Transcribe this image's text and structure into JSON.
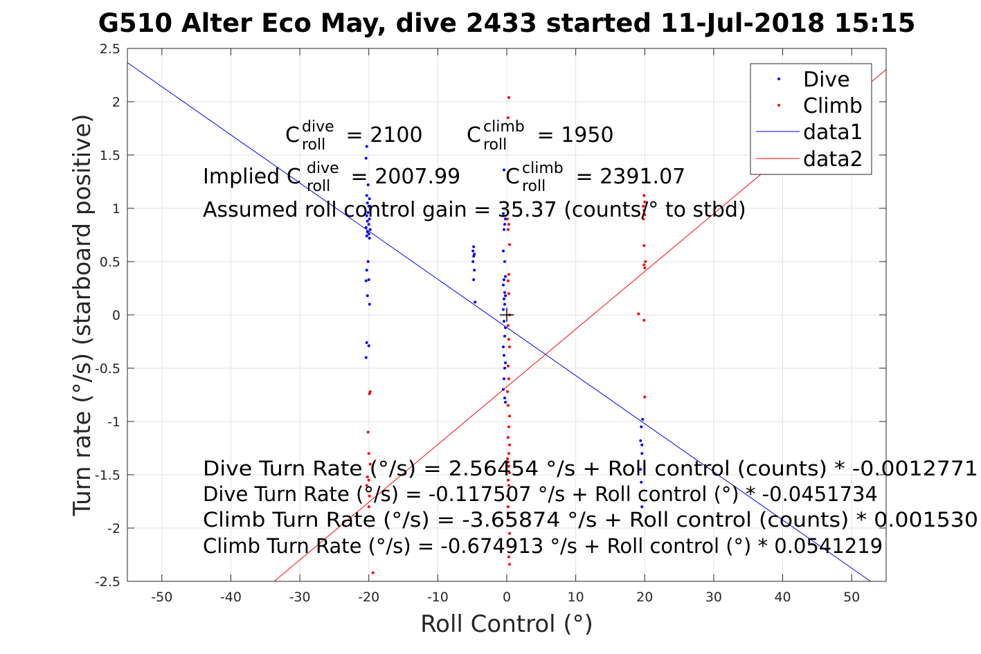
{
  "chart_data": {
    "type": "scatter",
    "title": "G510 Alter Eco May, dive 2433 started 11-Jul-2018 15:15",
    "xlabel": "Roll Control (°)",
    "ylabel": "Turn rate (°/s) (starboard positive)",
    "xlim": [
      -55,
      55
    ],
    "ylim": [
      -2.5,
      2.5
    ],
    "xticks": [
      -50,
      -40,
      -30,
      -20,
      -10,
      0,
      10,
      20,
      30,
      40,
      50
    ],
    "yticks": [
      -2.5,
      -2,
      -1.5,
      -1,
      -0.5,
      0,
      0.5,
      1,
      1.5,
      2,
      2.5
    ],
    "grid": true,
    "legend_position": "top-right",
    "colors": {
      "dive": "#0000ff",
      "climb": "#ff0000",
      "data1": "#0000ff",
      "data2": "#ff0000"
    },
    "series": [
      {
        "name": "Dive",
        "kind": "points",
        "color": "#0000ff",
        "points": [
          [
            -20.3,
            1.58
          ],
          [
            -20.4,
            1.47
          ],
          [
            -20.1,
            1.22
          ],
          [
            -20.3,
            1.12
          ],
          [
            -19.9,
            1.09
          ],
          [
            -20.2,
            1.05
          ],
          [
            -20.0,
            1.02
          ],
          [
            -19.8,
            0.99
          ],
          [
            -20.1,
            0.96
          ],
          [
            -20.3,
            0.93
          ],
          [
            -19.9,
            0.9
          ],
          [
            -20.2,
            0.88
          ],
          [
            -20.0,
            0.85
          ],
          [
            -20.4,
            0.82
          ],
          [
            -19.8,
            0.8
          ],
          [
            -20.2,
            0.78
          ],
          [
            -20.0,
            0.76
          ],
          [
            -20.3,
            0.74
          ],
          [
            -19.9,
            0.72
          ],
          [
            -20.1,
            0.5
          ],
          [
            -20.3,
            0.42
          ],
          [
            -20.0,
            0.33
          ],
          [
            -20.4,
            0.32
          ],
          [
            -20.2,
            0.18
          ],
          [
            -19.9,
            0.1
          ],
          [
            -20.3,
            -0.26
          ],
          [
            -20.0,
            -0.29
          ],
          [
            -20.4,
            -0.4
          ],
          [
            -4.8,
            0.64
          ],
          [
            -4.9,
            0.6
          ],
          [
            -4.7,
            0.57
          ],
          [
            -4.8,
            0.55
          ],
          [
            -4.9,
            0.5
          ],
          [
            -4.7,
            0.42
          ],
          [
            -4.8,
            0.33
          ],
          [
            -4.6,
            0.12
          ],
          [
            -0.4,
            1.36
          ],
          [
            -0.5,
            0.95
          ],
          [
            -0.2,
            0.9
          ],
          [
            -0.3,
            0.85
          ],
          [
            -0.4,
            0.8
          ],
          [
            -0.5,
            0.6
          ],
          [
            -0.3,
            0.5
          ],
          [
            -0.2,
            0.36
          ],
          [
            -0.4,
            0.33
          ],
          [
            -0.5,
            0.28
          ],
          [
            -0.3,
            0.21
          ],
          [
            -0.2,
            0.18
          ],
          [
            -0.4,
            0.15
          ],
          [
            -0.3,
            0.1
          ],
          [
            -0.5,
            0.05
          ],
          [
            -0.4,
            -0.06
          ],
          [
            -0.2,
            -0.12
          ],
          [
            -0.3,
            -0.2
          ],
          [
            -0.5,
            -0.3
          ],
          [
            -0.4,
            -0.38
          ],
          [
            -0.2,
            -0.45
          ],
          [
            -0.3,
            -0.5
          ],
          [
            -0.4,
            -0.6
          ],
          [
            -0.5,
            -0.7
          ],
          [
            -0.3,
            -0.78
          ],
          [
            -0.2,
            -0.82
          ],
          [
            19.4,
            -1.18
          ],
          [
            19.6,
            -1.22
          ],
          [
            19.7,
            -0.98
          ],
          [
            19.5,
            -1.05
          ],
          [
            19.6,
            -1.3
          ],
          [
            19.4,
            -1.45
          ],
          [
            19.5,
            -1.57
          ],
          [
            19.6,
            -1.8
          ]
        ]
      },
      {
        "name": "Climb",
        "kind": "points",
        "color": "#ff0000",
        "points": [
          [
            0.3,
            2.04
          ],
          [
            0.2,
            1.85
          ],
          [
            0.1,
            0.9
          ],
          [
            0.3,
            0.85
          ],
          [
            0.2,
            0.8
          ],
          [
            0.4,
            0.66
          ],
          [
            0.3,
            0.38
          ],
          [
            0.2,
            0.32
          ],
          [
            0.3,
            0.2
          ],
          [
            0.4,
            0.0
          ],
          [
            0.2,
            -0.1
          ],
          [
            0.3,
            -0.23
          ],
          [
            0.4,
            -0.3
          ],
          [
            0.2,
            -0.48
          ],
          [
            0.3,
            -0.6
          ],
          [
            0.1,
            -0.72
          ],
          [
            0.2,
            -0.85
          ],
          [
            0.4,
            -0.95
          ],
          [
            0.3,
            -1.05
          ],
          [
            0.2,
            -1.15
          ],
          [
            0.4,
            -1.22
          ],
          [
            0.3,
            -1.3
          ],
          [
            0.1,
            -1.35
          ],
          [
            0.2,
            -1.38
          ],
          [
            0.3,
            -1.42
          ],
          [
            0.4,
            -1.48
          ],
          [
            0.2,
            -1.55
          ],
          [
            0.3,
            -1.6
          ],
          [
            0.1,
            -1.7
          ],
          [
            0.2,
            -1.8
          ],
          [
            0.3,
            -1.9
          ],
          [
            0.4,
            -2.05
          ],
          [
            0.2,
            -2.17
          ],
          [
            0.3,
            -2.27
          ],
          [
            0.4,
            -2.34
          ],
          [
            -19.8,
            -0.72
          ],
          [
            -19.9,
            -0.74
          ],
          [
            -20.1,
            -1.1
          ],
          [
            -20.0,
            -1.3
          ],
          [
            -19.8,
            -1.4
          ],
          [
            -20.2,
            -1.52
          ],
          [
            -20.0,
            -1.55
          ],
          [
            -20.3,
            -1.6
          ],
          [
            -19.9,
            -1.7
          ],
          [
            -20.0,
            -1.8
          ],
          [
            -19.4,
            -2.42
          ],
          [
            19.9,
            1.12
          ],
          [
            20.0,
            1.06
          ],
          [
            19.8,
            1.02
          ],
          [
            19.9,
            0.98
          ],
          [
            20.0,
            0.94
          ],
          [
            19.8,
            0.9
          ],
          [
            19.9,
            0.65
          ],
          [
            20.1,
            0.5
          ],
          [
            19.9,
            0.47
          ],
          [
            20.0,
            0.44
          ],
          [
            19.1,
            0.01
          ],
          [
            19.9,
            -0.05
          ],
          [
            20.0,
            -0.77
          ]
        ]
      },
      {
        "name": "data1",
        "kind": "line",
        "color": "#0000ff",
        "x": [
          -55,
          55
        ],
        "y": [
          2.367,
          -2.602
        ]
      },
      {
        "name": "data2",
        "kind": "line",
        "color": "#ff0000",
        "x": [
          -55,
          55
        ],
        "y": [
          -3.652,
          2.302
        ]
      }
    ],
    "origin_marker": {
      "x": 0,
      "y": 0
    },
    "annotations": {
      "c_dive": {
        "base": "C",
        "sup": "dive",
        "sub": "roll",
        "rest": " = 2100"
      },
      "c_climb": {
        "base": "C",
        "sup": "climb",
        "sub": "roll",
        "rest": " = 1950"
      },
      "implied_dive": {
        "prefix": "Implied C",
        "sup": "dive",
        "sub": "roll",
        "rest": " = 2007.99"
      },
      "implied_climb": {
        "base": "C",
        "sup": "climb",
        "sub": "roll",
        "rest": " = 2391.07"
      },
      "gain": "Assumed roll control gain = 35.37 (counts/° to stbd)",
      "fit_lines": [
        "Dive Turn Rate (°/s) = 2.56454 °/s + Roll control (counts) * -0.0012771",
        "Dive Turn Rate (°/s) = -0.117507 °/s + Roll control (°) * -0.0451734",
        "Climb Turn Rate (°/s) = -3.65874 °/s + Roll control (counts) * 0.001530",
        "Climb Turn Rate (°/s) = -0.674913 °/s + Roll control (°) * 0.0541219"
      ]
    }
  }
}
